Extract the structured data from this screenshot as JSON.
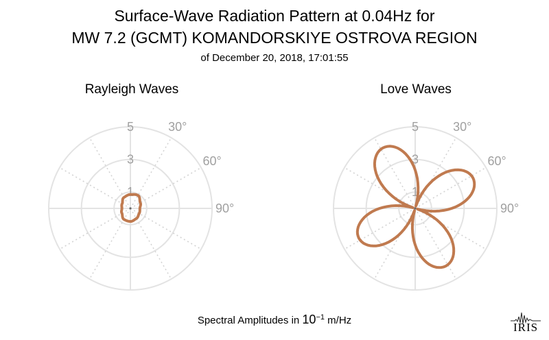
{
  "title": {
    "line1": "Surface-Wave Radiation Pattern at 0.04Hz for",
    "line2": "MW 7.2 (GCMT) KOMANDORSKIYE OSTROVA REGION",
    "line3": "of December 20, 2018, 17:01:55"
  },
  "footer": {
    "prefix": "Spectral Amplitudes in ",
    "base": "10",
    "exponent": "−1",
    "suffix": " m/Hz"
  },
  "logo": {
    "text": "IRIS"
  },
  "chart_data": [
    {
      "type": "polar-line",
      "title": "Rayleigh Waves",
      "radial_ticks": [
        "1",
        "3",
        "5"
      ],
      "radial_range": [
        0,
        5
      ],
      "angle_ticks": [
        "30°",
        "60°",
        "90°"
      ],
      "grid": true,
      "series": [
        {
          "color": "#c07a4f",
          "azimuth_deg": [
            0,
            30,
            60,
            90,
            120,
            150,
            180,
            210,
            240,
            270,
            300,
            330,
            360
          ],
          "amplitude": [
            0.85,
            0.92,
            0.7,
            0.58,
            0.62,
            0.72,
            0.8,
            0.78,
            0.6,
            0.52,
            0.58,
            0.78,
            0.85
          ]
        }
      ]
    },
    {
      "type": "polar-line",
      "title": "Love Waves",
      "radial_ticks": [
        "1",
        "3",
        "5"
      ],
      "radial_range": [
        0,
        5
      ],
      "angle_ticks": [
        "30°",
        "60°",
        "90°"
      ],
      "grid": true,
      "series": [
        {
          "color": "#c07a4f",
          "model": "four-lobe",
          "max_amplitude": 4.2,
          "lobe_axes_deg": [
            152,
            242,
            332,
            62
          ],
          "lobe_amplitudes": [
            4.0,
            3.9,
            4.2,
            4.0
          ]
        }
      ]
    }
  ]
}
